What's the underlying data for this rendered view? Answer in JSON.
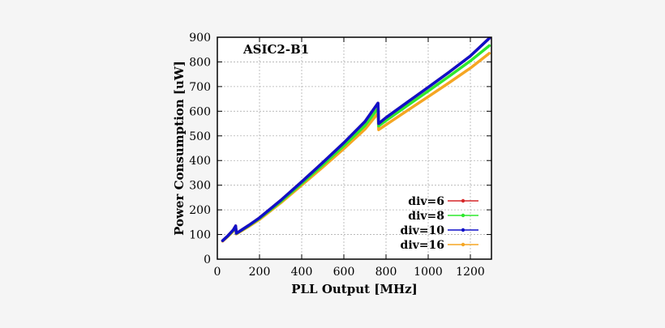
{
  "chart_data": {
    "type": "line",
    "annotation": "ASIC2-B1",
    "xlabel": "PLL Output [MHz]",
    "ylabel": "Power Consumption [uW]",
    "xlim": [
      0,
      1300
    ],
    "ylim": [
      0,
      900
    ],
    "xticks": [
      0,
      200,
      400,
      600,
      800,
      1000,
      1200
    ],
    "yticks": [
      0,
      100,
      200,
      300,
      400,
      500,
      600,
      700,
      800,
      900
    ],
    "grid": true,
    "legend_position": "bottom-right",
    "series": [
      {
        "name": "div=6",
        "color": "#d62728",
        "x": [
          25,
          50,
          75,
          87,
          90,
          100,
          150,
          200,
          300,
          400,
          500,
          600,
          700,
          762,
          765,
          800,
          900,
          1000,
          1100,
          1200,
          1290
        ],
        "y": [
          75,
          95,
          118,
          135,
          105,
          110,
          138,
          168,
          238,
          314,
          392,
          472,
          558,
          633,
          550,
          574,
          636,
          697,
          759,
          824,
          896
        ]
      },
      {
        "name": "div=8",
        "color": "#2ee82e",
        "x": [
          25,
          50,
          75,
          87,
          90,
          100,
          150,
          200,
          300,
          400,
          500,
          600,
          700,
          762,
          765,
          800,
          900,
          1000,
          1100,
          1200,
          1290
        ],
        "y": [
          75,
          94,
          116,
          132,
          104,
          109,
          136,
          165,
          233,
          307,
          382,
          460,
          542,
          612,
          540,
          562,
          622,
          682,
          742,
          804,
          866
        ]
      },
      {
        "name": "div=10",
        "color": "#1010c8",
        "x": [
          25,
          50,
          75,
          87,
          90,
          100,
          150,
          200,
          300,
          400,
          500,
          600,
          700,
          762,
          765,
          800,
          900,
          1000,
          1100,
          1200,
          1290
        ],
        "y": [
          75,
          95,
          118,
          135,
          105,
          110,
          138,
          168,
          238,
          314,
          392,
          472,
          558,
          633,
          550,
          574,
          636,
          697,
          759,
          824,
          896
        ]
      },
      {
        "name": "div=16",
        "color": "#f5a623",
        "x": [
          25,
          50,
          75,
          87,
          90,
          100,
          150,
          200,
          300,
          400,
          500,
          600,
          700,
          762,
          765,
          800,
          900,
          1000,
          1100,
          1200,
          1290
        ],
        "y": [
          73,
          92,
          113,
          128,
          102,
          107,
          133,
          161,
          228,
          300,
          373,
          448,
          527,
          592,
          525,
          545,
          602,
          659,
          716,
          775,
          835
        ]
      }
    ]
  }
}
